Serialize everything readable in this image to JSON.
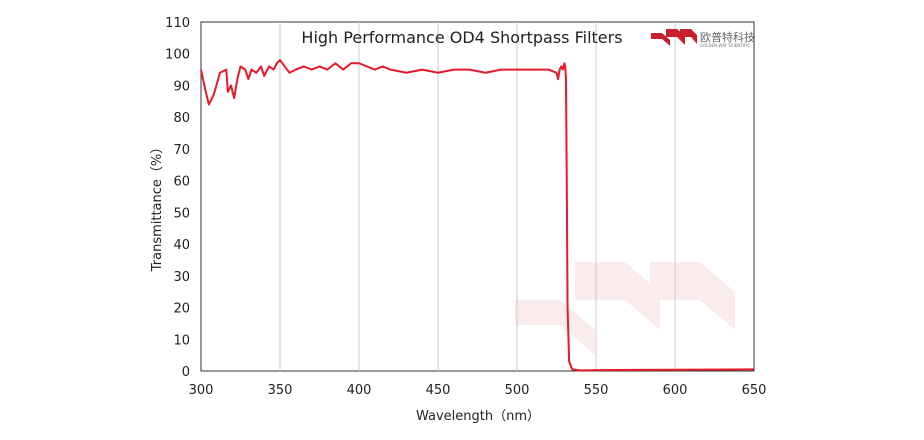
{
  "chart_data": {
    "type": "line",
    "title": "High Performance OD4 Shortpass  Filters",
    "xlabel": "Wavelength（nm）",
    "ylabel": "Transmittance（%）",
    "xlim": [
      300,
      650
    ],
    "ylim": [
      0,
      110
    ],
    "xticks": [
      300,
      350,
      400,
      450,
      500,
      550,
      600,
      650
    ],
    "yticks": [
      0,
      10,
      20,
      30,
      40,
      50,
      60,
      70,
      80,
      90,
      100,
      110
    ],
    "grid": "vertical",
    "legend": "none",
    "series": [
      {
        "color": "#e8192c",
        "x": [
          300,
          303,
          305,
          308,
          312,
          316,
          317,
          319,
          321,
          323,
          325,
          328,
          330,
          332,
          335,
          338,
          340,
          343,
          346,
          348,
          350,
          353,
          356,
          360,
          365,
          370,
          375,
          380,
          385,
          390,
          395,
          400,
          405,
          410,
          415,
          420,
          430,
          440,
          450,
          460,
          470,
          480,
          490,
          500,
          510,
          520,
          525,
          526,
          527,
          528,
          529,
          530,
          530.5,
          531,
          531.5,
          532,
          533,
          535,
          540,
          560,
          600,
          650
        ],
        "y": [
          95,
          88,
          84,
          87,
          94,
          95,
          88,
          90,
          86,
          92,
          96,
          95,
          92,
          95,
          94,
          96,
          93,
          96,
          95,
          97,
          98,
          96,
          94,
          95,
          96,
          95,
          96,
          95,
          97,
          95,
          97,
          97,
          96,
          95,
          96,
          95,
          94,
          95,
          94,
          95,
          95,
          94,
          95,
          95,
          95,
          95,
          94,
          92,
          95,
          96,
          95,
          97,
          96,
          92,
          60,
          20,
          3,
          0.5,
          0.2,
          0.3,
          0.4,
          0.5
        ]
      }
    ]
  },
  "logo": {
    "brand_cn": "欧普特科技",
    "brand_en": "GOLDEN WAY SCIENTIFIC",
    "brand_color": "#c8202f"
  }
}
